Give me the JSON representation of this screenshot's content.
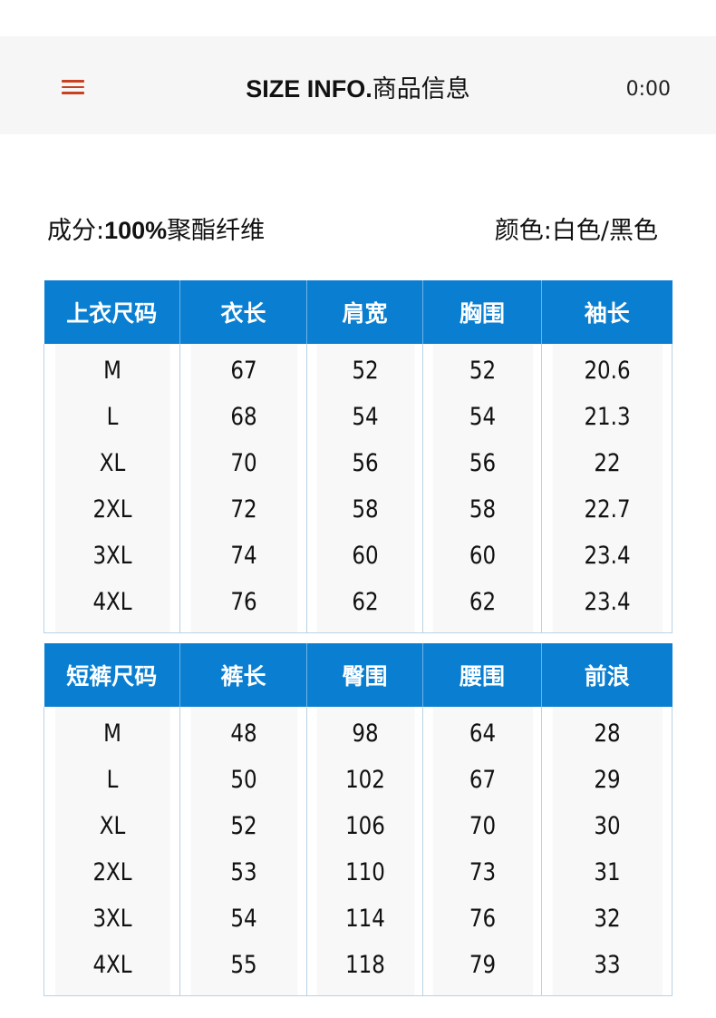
{
  "header": {
    "title_bold": "SIZE INFO.",
    "title_cn": "商品信息",
    "time": "0:00"
  },
  "info": {
    "composition_label": "成分:",
    "composition_value": "100%",
    "composition_material": "聚酯纤维",
    "color_label": "颜色:",
    "color_value": "白色/黑色"
  },
  "top_table": {
    "headers": [
      "上衣尺码",
      "衣长",
      "肩宽",
      "胸围",
      "袖长"
    ],
    "rows": [
      [
        "M",
        "67",
        "52",
        "52",
        "20.6"
      ],
      [
        "L",
        "68",
        "54",
        "54",
        "21.3"
      ],
      [
        "XL",
        "70",
        "56",
        "56",
        "22"
      ],
      [
        "2XL",
        "72",
        "58",
        "58",
        "22.7"
      ],
      [
        "3XL",
        "74",
        "60",
        "60",
        "23.4"
      ],
      [
        "4XL",
        "76",
        "62",
        "62",
        "23.4"
      ]
    ]
  },
  "bottom_table": {
    "headers": [
      "短裤尺码",
      "裤长",
      "臀围",
      "腰围",
      "前浪"
    ],
    "rows": [
      [
        "M",
        "48",
        "98",
        "64",
        "28"
      ],
      [
        "L",
        "50",
        "102",
        "67",
        "29"
      ],
      [
        "XL",
        "52",
        "106",
        "70",
        "30"
      ],
      [
        "2XL",
        "53",
        "110",
        "73",
        "31"
      ],
      [
        "3XL",
        "54",
        "114",
        "76",
        "32"
      ],
      [
        "4XL",
        "55",
        "118",
        "79",
        "33"
      ]
    ]
  },
  "colors": {
    "header_blue": "#0a7fd1",
    "menu_icon": "#c8401f"
  }
}
